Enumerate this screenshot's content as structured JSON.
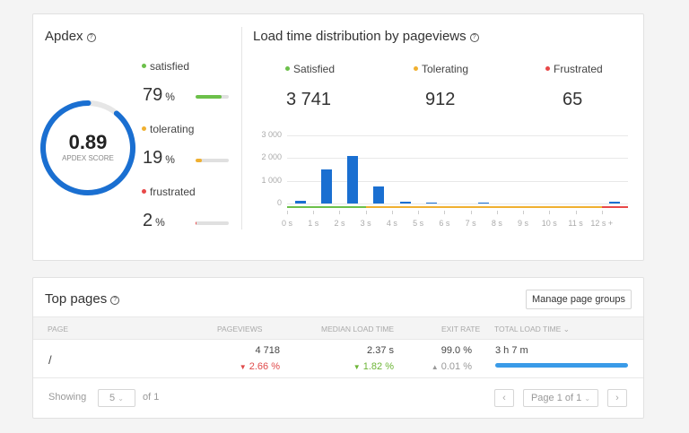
{
  "colors": {
    "accent": "#1a6fd1",
    "satisfied": "#6cc04a",
    "tolerating": "#f0b030",
    "frustrated": "#e84848",
    "progress": "#3a9be8"
  },
  "apdex": {
    "title": "Apdex",
    "help_icon": "?",
    "score": "0.89",
    "score_label": "APDEX SCORE",
    "score_value": 0.89,
    "categories": [
      {
        "label": "satisfied",
        "percent": "79",
        "unit": "%",
        "value": 79,
        "color": "#6cc04a"
      },
      {
        "label": "tolerating",
        "percent": "19",
        "unit": "%",
        "value": 19,
        "color": "#f0b030"
      },
      {
        "label": "frustrated",
        "percent": "2",
        "unit": "%",
        "value": 2,
        "color": "#e84848"
      }
    ]
  },
  "distribution": {
    "title": "Load time distribution by pageviews",
    "help_icon": "?",
    "kpis": [
      {
        "label": "Satisfied",
        "value": "3 741",
        "color": "#6cc04a"
      },
      {
        "label": "Tolerating",
        "value": "912",
        "color": "#f0b030"
      },
      {
        "label": "Frustrated",
        "value": "65",
        "color": "#e84848"
      }
    ]
  },
  "chart_data": {
    "type": "bar",
    "title": "Load time distribution by pageviews",
    "xlabel": "",
    "ylabel": "",
    "categories": [
      "0-1s",
      "1-2s",
      "2-3s",
      "3-4s",
      "4-5s",
      "5-6s",
      "6-7s",
      "7-8s",
      "8-9s",
      "9-10s",
      "10-11s",
      "11-12s",
      "12s+"
    ],
    "values": [
      100,
      1500,
      2100,
      750,
      80,
      10,
      0,
      10,
      0,
      0,
      0,
      0,
      60
    ],
    "x_tick_labels": [
      "0 s",
      "1 s",
      "2 s",
      "3 s",
      "4 s",
      "5 s",
      "6 s",
      "7 s",
      "8 s",
      "9 s",
      "10 s",
      "11 s",
      "12 s +"
    ],
    "y_tick_labels": [
      "0",
      "1 000",
      "2 000",
      "3 000"
    ],
    "ylim": [
      0,
      3000
    ],
    "grid": true,
    "zones": [
      {
        "name": "Satisfied",
        "from": "0 s",
        "to": "3 s",
        "color": "#6cc04a"
      },
      {
        "name": "Tolerating",
        "from": "3 s",
        "to": "12 s",
        "color": "#f0b030"
      },
      {
        "name": "Frustrated",
        "from": "12 s",
        "to": "12 s +",
        "color": "#e84848"
      }
    ]
  },
  "top_pages": {
    "title": "Top pages",
    "help_icon": "?",
    "manage_button": "Manage page groups",
    "columns": [
      "PAGE",
      "PAGEVIEWS",
      "MEDIAN LOAD TIME",
      "EXIT RATE",
      "TOTAL LOAD TIME"
    ],
    "sort_icon": "⌄",
    "rows": [
      {
        "page": "/",
        "pageviews": "4 718",
        "pageviews_change": "2.66 %",
        "pageviews_arrow": "▼",
        "median_load_time": "2.37 s",
        "median_change": "1.82 %",
        "median_arrow": "▼",
        "exit_rate": "99.0 %",
        "exit_change": "0.01 %",
        "exit_arrow": "▲",
        "total_load_time": "3 h 7 m",
        "total_load_pct": 100
      }
    ],
    "footer": {
      "showing_label": "Showing",
      "page_size": "5",
      "of_label": "of 1",
      "prev": "‹",
      "page_select": "Page 1 of 1",
      "next": "›"
    }
  }
}
